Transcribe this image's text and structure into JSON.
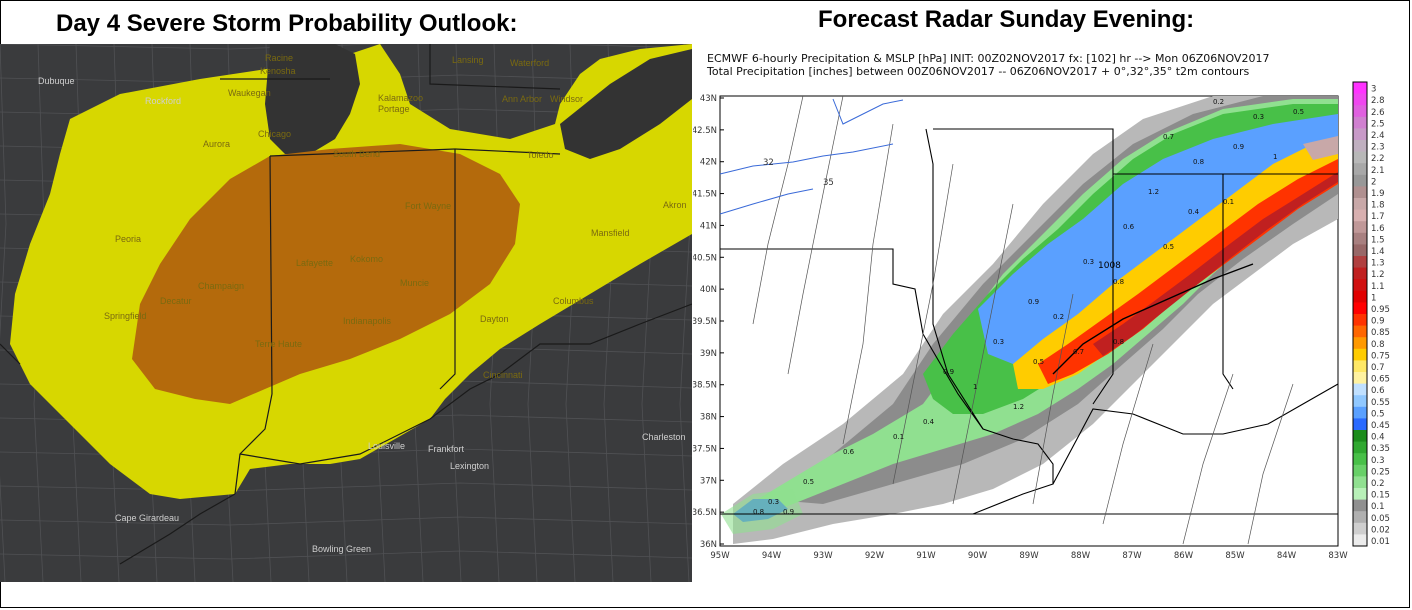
{
  "left_title": "Day 4 Severe Storm Probability Outlook:",
  "right_title": "Forecast Radar Sunday Evening:",
  "outlook_map": {
    "colors": {
      "background": "#3a3b3d",
      "lake": "#333333",
      "marginal": "#d7d700",
      "slight": "#b46a0c"
    },
    "cities": [
      {
        "name": "Dubuque",
        "key": "dubuque"
      },
      {
        "name": "Racine",
        "key": "racine"
      },
      {
        "name": "Kenosha",
        "key": "kenosha"
      },
      {
        "name": "Waukegan",
        "key": "waukegan"
      },
      {
        "name": "Rockford",
        "key": "rockford"
      },
      {
        "name": "Lansing",
        "key": "lansing"
      },
      {
        "name": "Waterford",
        "key": "waterford"
      },
      {
        "name": "Kalamazoo",
        "key": "kalamazoo"
      },
      {
        "name": "Portage",
        "key": "portage"
      },
      {
        "name": "Ann Arbor",
        "key": "ann-arbor"
      },
      {
        "name": "Windsor",
        "key": "windsor"
      },
      {
        "name": "Aurora",
        "key": "aurora"
      },
      {
        "name": "Chicago",
        "key": "chicago"
      },
      {
        "name": "South Bend",
        "key": "south-bend"
      },
      {
        "name": "Toledo",
        "key": "toledo"
      },
      {
        "name": "Fort Wayne",
        "key": "fort-wayne"
      },
      {
        "name": "Akron",
        "key": "akron"
      },
      {
        "name": "Peoria",
        "key": "peoria"
      },
      {
        "name": "Lafayette",
        "key": "lafayette"
      },
      {
        "name": "Kokomo",
        "key": "kokomo"
      },
      {
        "name": "Mansfield",
        "key": "mansfield"
      },
      {
        "name": "Champaign",
        "key": "champaign"
      },
      {
        "name": "Muncie",
        "key": "muncie"
      },
      {
        "name": "Decatur",
        "key": "decatur"
      },
      {
        "name": "Springfield",
        "key": "springfield"
      },
      {
        "name": "Indianapolis",
        "key": "indianapolis"
      },
      {
        "name": "Dayton",
        "key": "dayton"
      },
      {
        "name": "Columbus",
        "key": "columbus"
      },
      {
        "name": "Terre Haute",
        "key": "terre-haute"
      },
      {
        "name": "Cincinnati",
        "key": "cincinnati"
      },
      {
        "name": "Louisville",
        "key": "louisville"
      },
      {
        "name": "Frankfort",
        "key": "frankfort"
      },
      {
        "name": "Lexington",
        "key": "lexington"
      },
      {
        "name": "Charleston",
        "key": "charleston"
      },
      {
        "name": "Cape Girardeau",
        "key": "cape-girardeau"
      },
      {
        "name": "Bowling Green",
        "key": "bowling-green"
      }
    ]
  },
  "forecast_map": {
    "header_line1": "ECMWF 6-hourly Precipitation & MSLP [hPa] INIT: 00Z02NOV2017 fx: [102] hr --> Mon 06Z06NOV2017",
    "header_line2": "Total Precipitation [inches] between 00Z06NOV2017 -- 06Z06NOV2017   + 0°,32°,35° t2m contours",
    "y_ticks": [
      "43N",
      "42.5N",
      "42N",
      "41.5N",
      "41N",
      "40.5N",
      "40N",
      "39.5N",
      "39N",
      "38.5N",
      "38N",
      "37.5N",
      "37N",
      "36.5N",
      "36N"
    ],
    "x_ticks": [
      "95W",
      "94W",
      "93W",
      "92W",
      "91W",
      "90W",
      "89W",
      "88W",
      "87W",
      "86W",
      "85W",
      "84W",
      "83W"
    ],
    "isobar_label": "1008",
    "temp_contour_labels": [
      "32",
      "35"
    ],
    "colorbar": {
      "labels": [
        "3",
        "2.8",
        "2.6",
        "2.5",
        "2.4",
        "2.3",
        "2.2",
        "2.1",
        "2",
        "1.9",
        "1.8",
        "1.7",
        "1.6",
        "1.5",
        "1.4",
        "1.3",
        "1.2",
        "1.1",
        "1",
        "0.95",
        "0.9",
        "0.85",
        "0.8",
        "0.75",
        "0.7",
        "0.65",
        "0.6",
        "0.55",
        "0.5",
        "0.45",
        "0.4",
        "0.35",
        "0.3",
        "0.25",
        "0.2",
        "0.15",
        "0.1",
        "0.05",
        "0.02",
        "0.01"
      ],
      "colors": [
        "#ff33ff",
        "#f047f0",
        "#e060e0",
        "#d080d0",
        "#c89ac8",
        "#c0b0c0",
        "#b8b8b8",
        "#a8a8a8",
        "#989898",
        "#b09090",
        "#c8a8a8",
        "#d8b0b0",
        "#c09898",
        "#a88080",
        "#986868",
        "#b04040",
        "#c02020",
        "#d01010",
        "#e00000",
        "#ff0000",
        "#ff3300",
        "#ff6600",
        "#ff9900",
        "#ffcc00",
        "#ffe866",
        "#fff2a0",
        "#c0e0ff",
        "#90c8ff",
        "#5aa0ff",
        "#2a6aff",
        "#1c8c1c",
        "#30a830",
        "#48c048",
        "#68d068",
        "#90e090",
        "#b8f0b8",
        "#909090",
        "#b0b0b0",
        "#cfcfcf",
        "#ececec"
      ]
    },
    "precip_labels": [
      "0.2",
      "0.3",
      "0.5",
      "0.7",
      "0.8",
      "0.9",
      "1",
      "1.2",
      "0.4",
      "0.1",
      "0.6",
      "0.5",
      "0.3",
      "0.8",
      "0.9"
    ]
  }
}
